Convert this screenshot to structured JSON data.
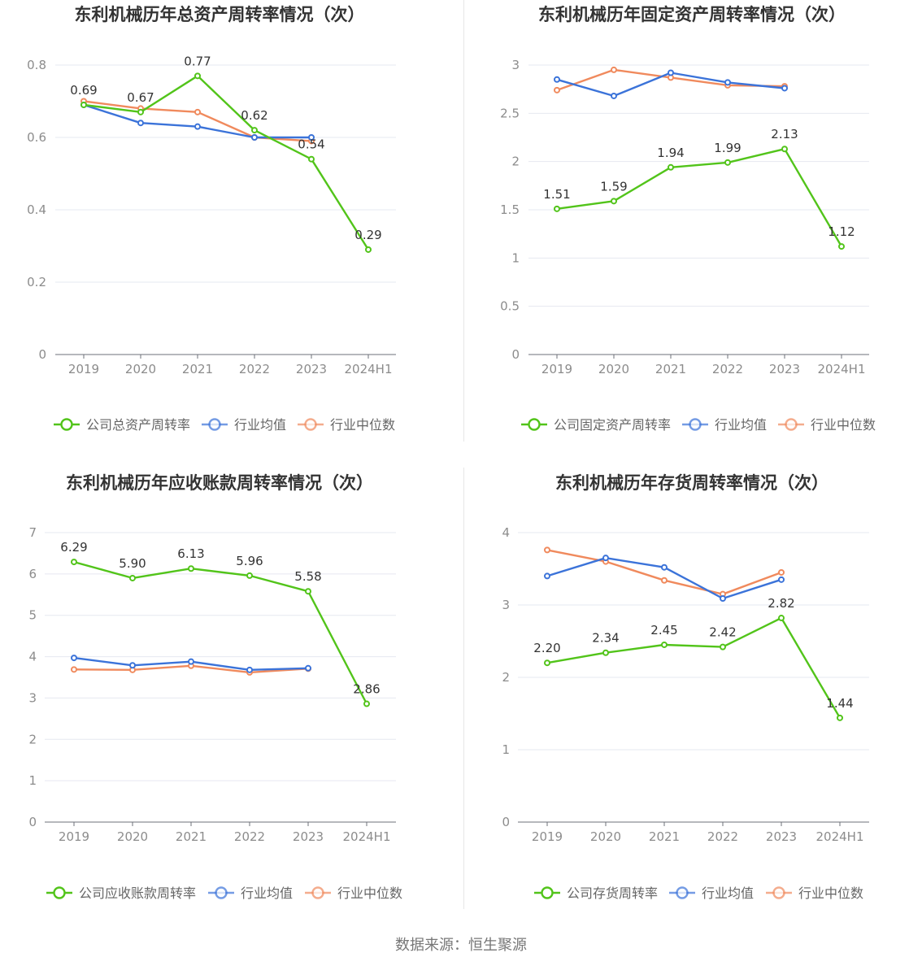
{
  "footer": {
    "source": "数据来源：恒生聚源"
  },
  "legend_names": {
    "industry_avg": "行业均值",
    "industry_median": "行业中位数"
  },
  "colors": {
    "company": "#52c41a",
    "industry_avg": "#3b73d9",
    "industry_median": "#f08a5d"
  },
  "chart_data": [
    {
      "type": "line",
      "title": "东利机械历年总资产周转率情况（次）",
      "categories": [
        "2019",
        "2020",
        "2021",
        "2022",
        "2023",
        "2024H1"
      ],
      "ylim": [
        0,
        0.8
      ],
      "yticks": [
        "0",
        "0.2",
        "0.4",
        "0.6",
        "0.8"
      ],
      "series": [
        {
          "name": "公司总资产周转率",
          "key": "company",
          "values": [
            0.69,
            0.67,
            0.77,
            0.62,
            0.54,
            0.29
          ],
          "labels": [
            "0.69",
            "0.67",
            "0.77",
            "0.62",
            "0.54",
            "0.29"
          ]
        },
        {
          "name": "行业均值",
          "key": "industry_avg",
          "values": [
            0.69,
            0.64,
            0.63,
            0.6,
            0.6,
            null
          ]
        },
        {
          "name": "行业中位数",
          "key": "industry_median",
          "values": [
            0.7,
            0.68,
            0.67,
            0.6,
            0.59,
            null
          ]
        }
      ]
    },
    {
      "type": "line",
      "title": "东利机械历年固定资产周转率情况（次）",
      "categories": [
        "2019",
        "2020",
        "2021",
        "2022",
        "2023",
        "2024H1"
      ],
      "ylim": [
        0,
        3
      ],
      "yticks": [
        "0",
        "0.5",
        "1",
        "1.5",
        "2",
        "2.5",
        "3"
      ],
      "series": [
        {
          "name": "公司固定资产周转率",
          "key": "company",
          "values": [
            1.51,
            1.59,
            1.94,
            1.99,
            2.13,
            1.12
          ],
          "labels": [
            "1.51",
            "1.59",
            "1.94",
            "1.99",
            "2.13",
            "1.12"
          ]
        },
        {
          "name": "行业均值",
          "key": "industry_avg",
          "values": [
            2.85,
            2.68,
            2.92,
            2.82,
            2.76,
            null
          ]
        },
        {
          "name": "行业中位数",
          "key": "industry_median",
          "values": [
            2.74,
            2.95,
            2.87,
            2.79,
            2.78,
            null
          ]
        }
      ]
    },
    {
      "type": "line",
      "title": "东利机械历年应收账款周转率情况（次）",
      "categories": [
        "2019",
        "2020",
        "2021",
        "2022",
        "2023",
        "2024H1"
      ],
      "ylim": [
        0,
        7
      ],
      "yticks": [
        "0",
        "1",
        "2",
        "3",
        "4",
        "5",
        "6",
        "7"
      ],
      "series": [
        {
          "name": "公司应收账款周转率",
          "key": "company",
          "values": [
            6.29,
            5.9,
            6.13,
            5.96,
            5.58,
            2.86
          ],
          "labels": [
            "6.29",
            "5.90",
            "6.13",
            "5.96",
            "5.58",
            "2.86"
          ]
        },
        {
          "name": "行业均值",
          "key": "industry_avg",
          "values": [
            3.97,
            3.79,
            3.88,
            3.68,
            3.72,
            null
          ]
        },
        {
          "name": "行业中位数",
          "key": "industry_median",
          "values": [
            3.69,
            3.68,
            3.78,
            3.62,
            3.71,
            null
          ]
        }
      ]
    },
    {
      "type": "line",
      "title": "东利机械历年存货周转率情况（次）",
      "categories": [
        "2019",
        "2020",
        "2021",
        "2022",
        "2023",
        "2024H1"
      ],
      "ylim": [
        0,
        4
      ],
      "yticks": [
        "0",
        "1",
        "2",
        "3",
        "4"
      ],
      "series": [
        {
          "name": "公司存货周转率",
          "key": "company",
          "values": [
            2.2,
            2.34,
            2.45,
            2.42,
            2.82,
            1.44
          ],
          "labels": [
            "2.20",
            "2.34",
            "2.45",
            "2.42",
            "2.82",
            "1.44"
          ]
        },
        {
          "name": "行业均值",
          "key": "industry_avg",
          "values": [
            3.4,
            3.65,
            3.52,
            3.09,
            3.35,
            null
          ]
        },
        {
          "name": "行业中位数",
          "key": "industry_median",
          "values": [
            3.76,
            3.6,
            3.34,
            3.15,
            3.45,
            null
          ]
        }
      ]
    }
  ]
}
